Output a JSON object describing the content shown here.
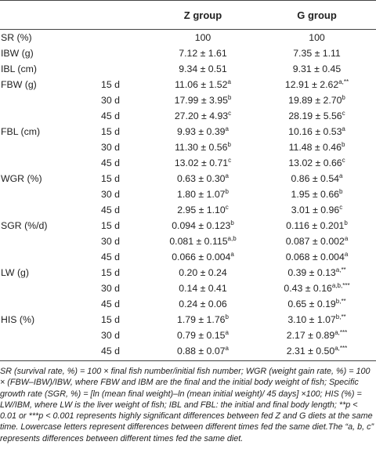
{
  "table": {
    "header": {
      "z": "Z group",
      "g": "G group"
    },
    "rows": [
      {
        "label": "SR (%)",
        "z": "100",
        "g": "100"
      },
      {
        "label": "IBW (g)",
        "z": "7.12 ± 1.61",
        "g": "7.35 ± 1.11"
      },
      {
        "label": "IBL (cm)",
        "z": "9.34 ± 0.51",
        "g": "9.31 ± 0.45"
      },
      {
        "label": "FBW (g)",
        "day": "15 d",
        "z": "11.06 ± 1.52",
        "z_sup": "a",
        "g": "12.91 ± 2.62",
        "g_sup": "a,**"
      },
      {
        "day": "30 d",
        "z": "17.99 ± 3.95",
        "z_sup": "b",
        "g": "19.89 ± 2.70",
        "g_sup": "b"
      },
      {
        "day": "45 d",
        "z": "27.20 ± 4.93",
        "z_sup": "c",
        "g": "28.19 ± 5.56",
        "g_sup": "c"
      },
      {
        "label": "FBL (cm)",
        "day": "15 d",
        "z": "9.93 ± 0.39",
        "z_sup": "a",
        "g": "10.16 ± 0.53",
        "g_sup": "a"
      },
      {
        "day": "30 d",
        "z": "11.30 ± 0.56",
        "z_sup": "b",
        "g": "11.48 ± 0.46",
        "g_sup": "b"
      },
      {
        "day": "45 d",
        "z": "13.02 ± 0.71",
        "z_sup": "c",
        "g": "13.02 ± 0.66",
        "g_sup": "c"
      },
      {
        "label": "WGR (%)",
        "day": "15 d",
        "z": "0.63 ± 0.30",
        "z_sup": "a",
        "g": "0.86 ± 0.54",
        "g_sup": "a"
      },
      {
        "day": "30 d",
        "z": "1.80 ± 1.07",
        "z_sup": "b",
        "g": "1.95 ± 0.66",
        "g_sup": "b"
      },
      {
        "day": "45 d",
        "z": "2.95 ± 1.10",
        "z_sup": "c",
        "g": "3.01 ± 0.96",
        "g_sup": "c"
      },
      {
        "label": "SGR (%/d)",
        "day": "15 d",
        "z": "0.094 ± 0.123",
        "z_sup": "b",
        "g": "0.116 ± 0.201",
        "g_sup": "b"
      },
      {
        "day": "30 d",
        "z": "0.081 ± 0.115",
        "z_sup": "a,b",
        "g": "0.087 ± 0.002",
        "g_sup": "a"
      },
      {
        "day": "45 d",
        "z": "0.066 ± 0.004",
        "z_sup": "a",
        "g": "0.068 ± 0.004",
        "g_sup": "a"
      },
      {
        "label": "LW (g)",
        "day": "15 d",
        "z": "0.20 ± 0.24",
        "g": "0.39 ± 0.13",
        "g_sup": "a,**"
      },
      {
        "day": "30 d",
        "z": "0.14 ± 0.41",
        "g": "0.43 ± 0.16",
        "g_sup": "a,b,***"
      },
      {
        "day": "45 d",
        "z": "0.24 ± 0.06",
        "g": "0.65 ± 0.19",
        "g_sup": "b,**"
      },
      {
        "label": "HIS (%)",
        "day": "15 d",
        "z": "1.79 ± 1.76",
        "z_sup": "b",
        "g": "3.10 ± 1.07",
        "g_sup": "b,**"
      },
      {
        "day": "30 d",
        "z": "0.79 ± 0.15",
        "z_sup": "a",
        "g": "2.17 ± 0.89",
        "g_sup": "a,***"
      },
      {
        "day": "45 d",
        "z": "0.88 ± 0.07",
        "z_sup": "a",
        "g": "2.31 ± 0.50",
        "g_sup": "a,***"
      }
    ]
  },
  "footnote": "SR (survival rate, %) = 100 × final fish number/initial fish number; WGR (weight gain rate, %) = 100 × (FBW–IBW)/IBW, where FBW and IBM are the final and the initial body weight of fish; Specific growth rate (SGR, %) = [ln (mean final weight)–ln (mean initial weight)/ 45 days] ×100; HIS (%) = LW/IBM, where LW is the liver weight of fish; IBL and FBL: the initial and final body length; **p < 0.01 or ***p < 0.001 represents highly significant differences between fed Z and G diets at the same time. Lowercase letters represent differences between different times fed the same diet.The “a, b, c” represents differences between different times fed the same diet."
}
